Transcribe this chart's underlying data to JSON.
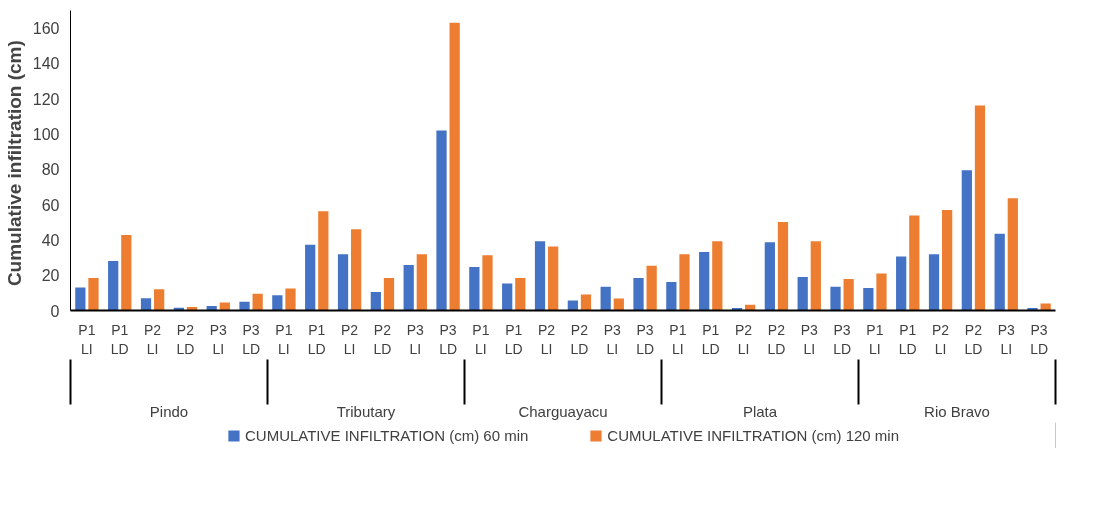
{
  "chart_data": {
    "type": "bar",
    "ylabel": "Cumulative infiltration  (cm)",
    "categories": [
      "P1 LI",
      "P1 LD",
      "P2 LI",
      "P2 LD",
      "P3 LI",
      "P3 LD",
      "P1 LI",
      "P1 LD",
      "P2 LI",
      "P2 LD",
      "P3 LI",
      "P3 LD",
      "P1 LI",
      "P1 LD",
      "P2 LI",
      "P2 LD",
      "P3 LI",
      "P3 LD",
      "P1 LI",
      "P1 LD",
      "P2 LI",
      "P2 LD",
      "P3 LI",
      "P3 LD",
      "P1 LI",
      "P1 LD",
      "P2 LI",
      "P2 LD",
      "P3 LI",
      "P3 LD"
    ],
    "annotations": [
      "Pindo",
      "Tributary",
      "Charguayacu",
      "Plata",
      "Rio Bravo"
    ],
    "series": [
      {
        "name": "CUMULATIVE INFILTRATION (cm) 60 min",
        "color": "#4472c4",
        "values": [
          13,
          28,
          7,
          1.5,
          2.5,
          5,
          8.7,
          37.3,
          31.9,
          10.5,
          25.8,
          102,
          24.6,
          15.3,
          39.3,
          5.6,
          13.5,
          18.4,
          16.1,
          33.1,
          1.4,
          38.7,
          19,
          13.5,
          12.8,
          30.6,
          31.9,
          79.5,
          43.5,
          1.4
        ]
      },
      {
        "name": "CUMULATIVE INFILTRATION (cm) 120 min",
        "color": "#ed7d31",
        "values": [
          18.4,
          42.8,
          12,
          2,
          4.5,
          9.5,
          12.4,
          56.3,
          46,
          18.4,
          31.9,
          163,
          31.3,
          18.4,
          36.2,
          9.1,
          6.8,
          25.4,
          31.9,
          39.3,
          3.2,
          50.1,
          39.3,
          17.8,
          21,
          53.9,
          57,
          116.2,
          63.6,
          3.9
        ]
      }
    ],
    "ylim": [
      0,
      170
    ],
    "yticks": [
      0,
      20,
      40,
      60,
      80,
      100,
      120,
      140,
      160
    ],
    "grid": false,
    "legend": "bottom"
  }
}
